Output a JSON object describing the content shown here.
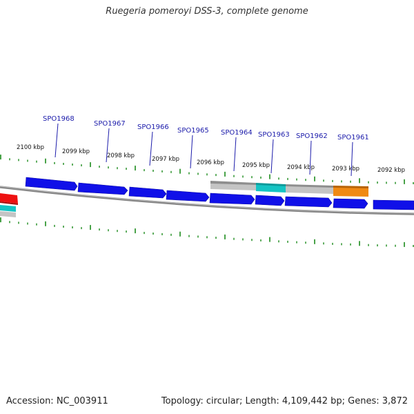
{
  "title": "Ruegeria pomeroyi DSS-3, complete genome",
  "footer": {
    "accession": "Accession: NC_003911",
    "topology": "Topology: circular; Length: 4,109,442 bp; Genes: 3,872"
  },
  "colors": {
    "forward_gene": "#1010e8",
    "rna_cyan": "#14c4c4",
    "feature_gray": "#bdbdbd",
    "feature_orange": "#f08a14",
    "feature_red": "#ee1111",
    "label_blue": "#1a1aaa",
    "tick_green": "#1a8a1a",
    "backbone": "#888888"
  },
  "kbp_labels": [
    "2100 kbp",
    "2099 kbp",
    "2098 kbp",
    "2097 kbp",
    "2096 kbp",
    "2095 kbp",
    "2094 kbp",
    "2093 kbp",
    "2092 kbp"
  ],
  "gene_labels": [
    "SPO1968",
    "SPO1967",
    "SPO1966",
    "SPO1965",
    "SPO1964",
    "SPO1963",
    "SPO1962",
    "SPO1961"
  ]
}
